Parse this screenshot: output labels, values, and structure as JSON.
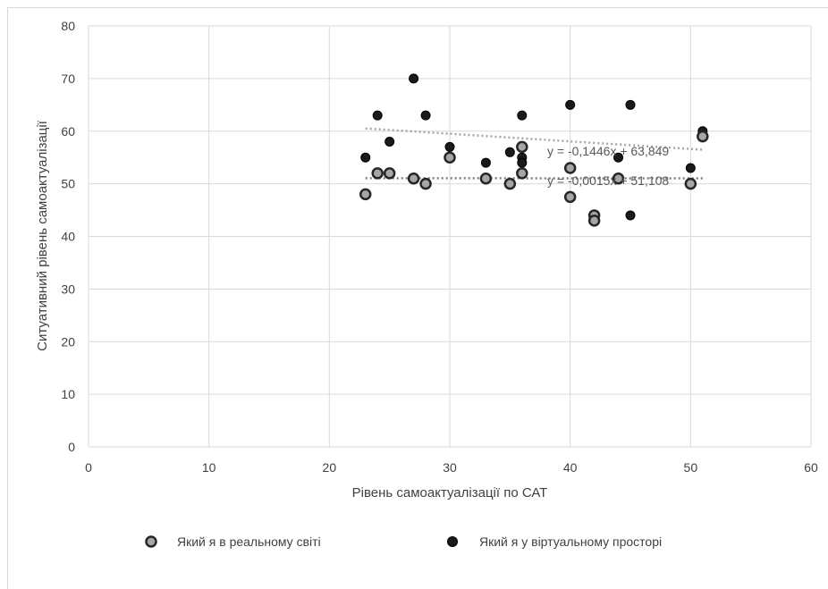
{
  "chart_data": {
    "type": "scatter",
    "title": "",
    "xlabel": "Рівень самоактуалізації по САТ",
    "ylabel": "Ситуативний рівень самоактуалізації",
    "xlim": [
      0,
      60
    ],
    "ylim": [
      0,
      80
    ],
    "xticks": [
      "0",
      "10",
      "20",
      "30",
      "40",
      "50",
      "60"
    ],
    "yticks": [
      "0",
      "10",
      "20",
      "30",
      "40",
      "50",
      "60",
      "70",
      "80"
    ],
    "grid": true,
    "legend_position": "bottom",
    "series": [
      {
        "name": "Який я в реальному світі",
        "color": "#a6a6a6",
        "edge": "#262626",
        "points": [
          [
            23,
            48
          ],
          [
            24,
            52
          ],
          [
            25,
            52
          ],
          [
            27,
            51
          ],
          [
            28,
            50
          ],
          [
            30,
            55
          ],
          [
            33,
            51
          ],
          [
            35,
            50
          ],
          [
            36,
            52
          ],
          [
            36,
            57
          ],
          [
            40,
            47.5
          ],
          [
            40,
            53
          ],
          [
            42,
            44
          ],
          [
            42,
            43
          ],
          [
            44,
            51
          ],
          [
            50,
            50
          ],
          [
            51,
            59
          ]
        ],
        "trendline": {
          "label": "y = -0,0015x + 51,108",
          "from": [
            23,
            51.07
          ],
          "to": [
            51,
            51.03
          ]
        }
      },
      {
        "name": "Який я у віртуальному просторі",
        "color": "#1a1a1a",
        "edge": "#000000",
        "points": [
          [
            23,
            55
          ],
          [
            24,
            63
          ],
          [
            25,
            58
          ],
          [
            27,
            70
          ],
          [
            28,
            63
          ],
          [
            30,
            57
          ],
          [
            33,
            54
          ],
          [
            35,
            56
          ],
          [
            36,
            55
          ],
          [
            36,
            54
          ],
          [
            36,
            63
          ],
          [
            40,
            65
          ],
          [
            44,
            55
          ],
          [
            45,
            65
          ],
          [
            45,
            44
          ],
          [
            50,
            53
          ],
          [
            51,
            60
          ]
        ],
        "trendline": {
          "label": "y = -0,1446x + 63,849",
          "from": [
            23,
            60.52
          ],
          "to": [
            51,
            56.47
          ]
        }
      }
    ]
  }
}
